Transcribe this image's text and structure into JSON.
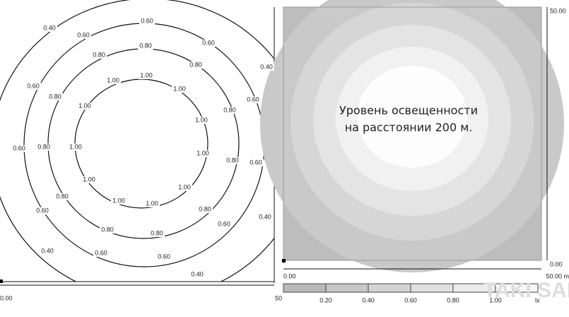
{
  "contour_plot": {
    "contour_labels": [
      "1.00",
      "1.00",
      "1.00",
      "1.00",
      "1.00",
      "1.00",
      "1.00",
      "1.00",
      "1.00",
      "1.00",
      "1.00",
      "0.80",
      "0.80",
      "0.80",
      "0.80",
      "0.80",
      "0.80",
      "0.80",
      "0.80",
      "0.80",
      "0.80",
      "0.80",
      "0.60",
      "0.60",
      "0.60",
      "0.60",
      "0.60",
      "0.60",
      "0.60",
      "0.60",
      "0.60",
      "0.60",
      "0.60",
      "0.40",
      "0.40",
      "0.40",
      "0.40",
      "0.40"
    ],
    "x_start": "0.00",
    "x_end": "50"
  },
  "isolux_plot": {
    "caption_line1": "Уровень освещенности",
    "caption_line2": "на расстоянии 200 м.",
    "x_start": "0.00",
    "x_end": "50.00 m",
    "y_top": "50.00",
    "y_bottom": "0.00"
  },
  "legend": {
    "labels": [
      "0.20",
      "0.40",
      "0.60",
      "0.80",
      "1.00"
    ],
    "unit": "lx"
  },
  "watermark": "TAKI SALE"
}
